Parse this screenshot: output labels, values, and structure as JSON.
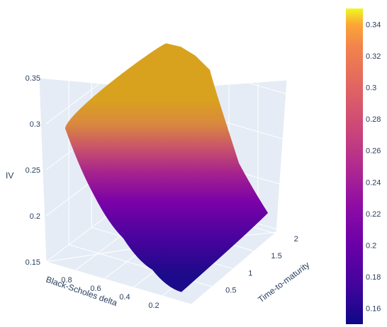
{
  "chart_data": {
    "type": "surface",
    "title": "",
    "axes": {
      "x": {
        "label": "Black-Scholes delta",
        "ticks": [
          0.8,
          0.6,
          0.4,
          0.2
        ]
      },
      "y": {
        "label": "Time-to-maturity",
        "ticks": [
          0.5,
          1,
          1.5,
          2
        ]
      },
      "z": {
        "label": "IV",
        "ticks": [
          0.15,
          0.2,
          0.25,
          0.3,
          0.35
        ],
        "range": [
          0.15,
          0.35
        ]
      }
    },
    "surface_edges": {
      "far_edge_time": 2.0,
      "far_edge": [
        {
          "delta": 0.9,
          "iv": 0.296
        },
        {
          "delta": 0.8,
          "iv": 0.322
        },
        {
          "delta": 0.7,
          "iv": 0.323
        },
        {
          "delta": 0.6,
          "iv": 0.318
        },
        {
          "delta": 0.5,
          "iv": 0.307
        }
      ],
      "near_edge_time": 0.1,
      "near_edge": [
        {
          "delta": 0.9,
          "iv": 0.296
        },
        {
          "delta": 0.7,
          "iv": 0.232
        },
        {
          "delta": 0.5,
          "iv": 0.195
        },
        {
          "delta": 0.3,
          "iv": 0.17
        },
        {
          "delta": 0.1,
          "iv": 0.155
        }
      ]
    },
    "colorscale": {
      "name": "plasma",
      "min": 0.15,
      "max": 0.35,
      "ticks": [
        "0.34",
        "0.32",
        "0.3",
        "0.28",
        "0.26",
        "0.24",
        "0.22",
        "0.2",
        "0.18",
        "0.16"
      ]
    },
    "grid": true,
    "legend": "colorbar-right"
  }
}
